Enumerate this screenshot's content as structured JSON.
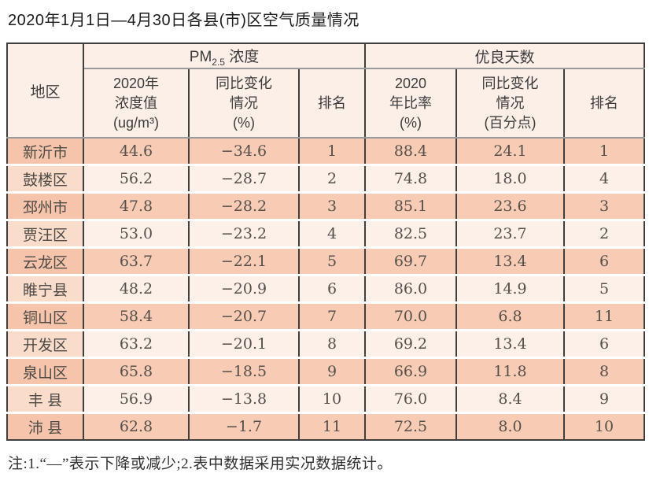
{
  "page": {
    "title": "2020年1月1日—4月30日各县(市)区空气质量情况",
    "footnote": "注:1.“—”表示下降或减少;2.表中数据采用实况数据统计。"
  },
  "colors": {
    "border_dark": "#3f3f3f",
    "divider_gray": "#9a9a9a",
    "header_bg": "#fcefe7",
    "row_salmon": "#f8ccb4",
    "row_light": "#fdf0e9",
    "region_salmon": "#f6c4aa",
    "region_light": "#f9dcca",
    "text_dark": "#1c1c1c",
    "text_data": "#55504b"
  },
  "table": {
    "region_header": "地区",
    "pm_group": {
      "prefix": "PM",
      "sub": "2.5",
      "suffix": " 浓度"
    },
    "days_group_label": "优良天数",
    "sub_headers": [
      "2020年\n浓度值\n(ug/m³)",
      "同比变化\n情况\n(%)",
      "排名",
      "2020\n年比率\n(%)",
      "同比变化\n情况\n(百分点)",
      "排名"
    ],
    "rows": [
      [
        "新沂市",
        "44.6",
        "−34.6",
        "1",
        "88.4",
        "24.1",
        "1"
      ],
      [
        "鼓楼区",
        "56.2",
        "−28.7",
        "2",
        "74.8",
        "18.0",
        "4"
      ],
      [
        "邳州市",
        "47.8",
        "−28.2",
        "3",
        "85.1",
        "23.6",
        "3"
      ],
      [
        "贾汪区",
        "53.0",
        "−23.2",
        "4",
        "82.5",
        "23.7",
        "2"
      ],
      [
        "云龙区",
        "63.7",
        "−22.1",
        "5",
        "69.7",
        "13.4",
        "6"
      ],
      [
        "睢宁县",
        "48.2",
        "−20.9",
        "6",
        "86.0",
        "14.9",
        "5"
      ],
      [
        "铜山区",
        "58.4",
        "−20.7",
        "7",
        "70.0",
        "6.8",
        "11"
      ],
      [
        "开发区",
        "63.2",
        "−20.1",
        "8",
        "69.2",
        "13.4",
        "6"
      ],
      [
        "泉山区",
        "65.8",
        "−18.5",
        "9",
        "66.9",
        "11.8",
        "8"
      ],
      [
        "丰 县",
        "56.9",
        "−13.8",
        "10",
        "76.0",
        "8.4",
        "9"
      ],
      [
        "沛 县",
        "62.8",
        "−1.7",
        "11",
        "72.5",
        "8.0",
        "10"
      ]
    ]
  }
}
